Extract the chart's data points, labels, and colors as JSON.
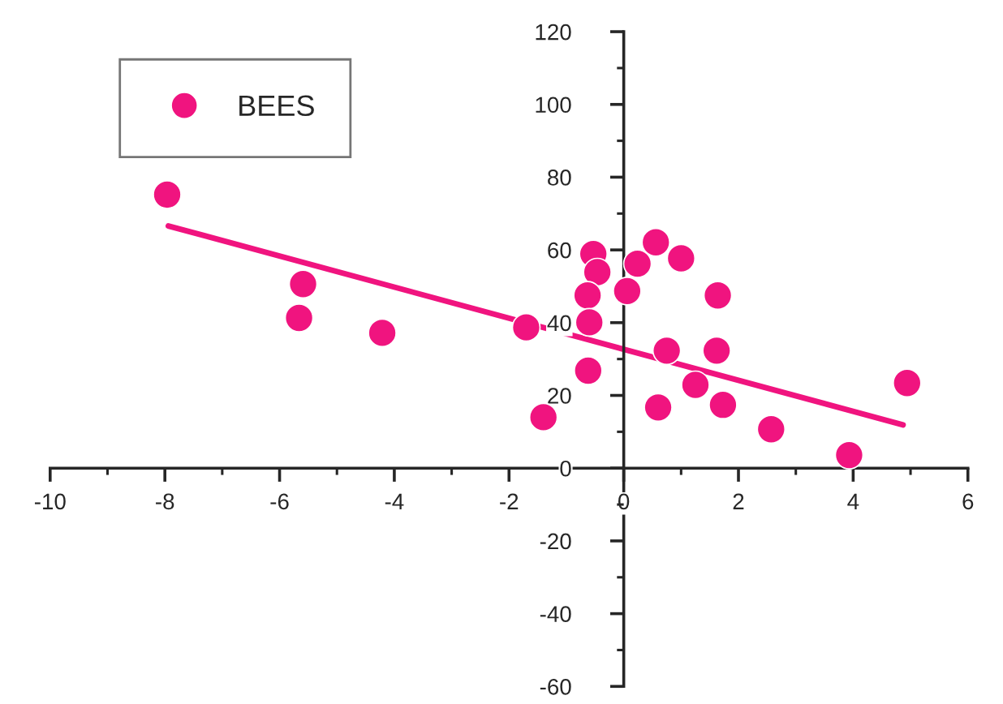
{
  "chart_data": {
    "type": "scatter",
    "xlim": [
      -10,
      6
    ],
    "ylim": [
      -60,
      120
    ],
    "xticks": [
      -10,
      -8,
      -6,
      -4,
      -2,
      0,
      2,
      4,
      6
    ],
    "yticks": [
      -60,
      -40,
      -20,
      0,
      20,
      40,
      60,
      80,
      100,
      120
    ],
    "grid": false,
    "legend": "top left",
    "marker": "circle",
    "series": [
      {
        "name": "BEES",
        "color": "#f0147f",
        "x": [
          -7.96,
          -5.59,
          -5.66,
          -4.21,
          -1.7,
          -1.4,
          -0.53,
          -0.46,
          -0.63,
          -0.6,
          -0.62,
          0.06,
          0.24,
          0.56,
          1.0,
          1.64,
          0.75,
          1.62,
          1.25,
          0.6,
          1.73,
          2.57,
          3.93,
          4.94
        ],
        "values": [
          75.2,
          50.6,
          41.3,
          37.2,
          38.7,
          14.0,
          58.9,
          53.9,
          47.5,
          40.1,
          26.8,
          48.7,
          56.2,
          62.1,
          57.7,
          47.5,
          32.3,
          32.3,
          22.9,
          16.7,
          17.4,
          10.7,
          3.6,
          23.4
        ]
      },
      {
        "type": "line",
        "color": "#f0147f",
        "x": [
          -7.94,
          4.87
        ],
        "values": [
          66.6,
          11.9
        ],
        "marker": "none",
        "line_style": "solid"
      }
    ]
  }
}
